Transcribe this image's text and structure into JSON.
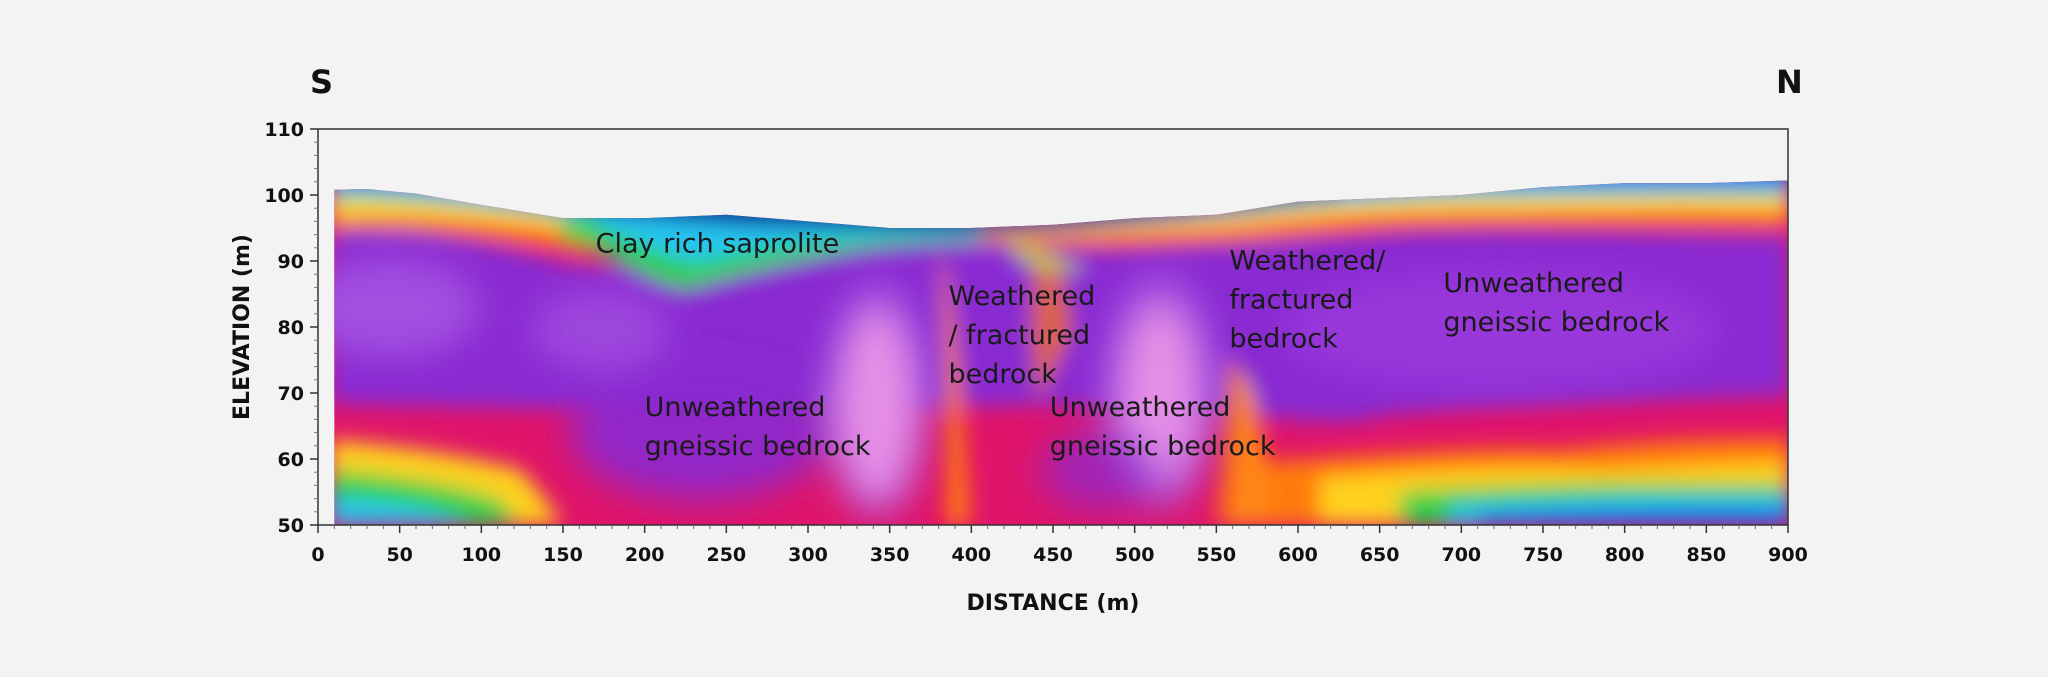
{
  "chart_data": {
    "type": "heatmap",
    "title": "",
    "xlabel": "DISTANCE (m)",
    "ylabel": "ELEVATION (m)",
    "direction_left": "S",
    "direction_right": "N",
    "xlim": [
      0,
      900
    ],
    "ylim": [
      50,
      110
    ],
    "x_ticks": [
      "0",
      "50",
      "100",
      "150",
      "200",
      "250",
      "300",
      "350",
      "400",
      "450",
      "500",
      "550",
      "600",
      "650",
      "700",
      "750",
      "800",
      "850",
      "900"
    ],
    "y_ticks": [
      "50",
      "60",
      "70",
      "80",
      "90",
      "100",
      "110"
    ],
    "grid": false,
    "colormap": [
      "#0a1f9a",
      "#1e63e6",
      "#26c6f0",
      "#2fd14a",
      "#c8e62a",
      "#ffd21e",
      "#ff7a10",
      "#f2104a",
      "#e4207e",
      "#8a2ad2",
      "#a24fe0",
      "#e68fe6"
    ],
    "surface_elevation": [
      [
        10,
        100.8
      ],
      [
        30,
        100.9
      ],
      [
        60,
        100.2
      ],
      [
        100,
        98.5
      ],
      [
        150,
        96.5
      ],
      [
        200,
        96.5
      ],
      [
        250,
        97
      ],
      [
        300,
        96
      ],
      [
        350,
        95
      ],
      [
        400,
        95
      ],
      [
        450,
        95.5
      ],
      [
        500,
        96.5
      ],
      [
        550,
        97
      ],
      [
        600,
        99
      ],
      [
        650,
        99.5
      ],
      [
        700,
        100
      ],
      [
        750,
        101.2
      ],
      [
        800,
        101.8
      ],
      [
        850,
        101.8
      ],
      [
        900,
        102.2
      ]
    ],
    "annotations": [
      {
        "lines": [
          "Clay rich saprolite"
        ],
        "x": 170,
        "y": 91.3
      },
      {
        "lines": [
          "Weathered",
          "/ fractured",
          "bedrock"
        ],
        "x": 386,
        "y": 83.3
      },
      {
        "lines": [
          "Unweathered",
          "gneissic bedrock"
        ],
        "x": 200,
        "y": 66.5
      },
      {
        "lines": [
          "Unweathered",
          "gneissic bedrock"
        ],
        "x": 448,
        "y": 66.5
      },
      {
        "lines": [
          "Weathered/",
          "fractured",
          "bedrock"
        ],
        "x": 558,
        "y": 88.7
      },
      {
        "lines": [
          "Unweathered",
          "gneissic bedrock"
        ],
        "x": 689,
        "y": 85.3
      }
    ]
  }
}
